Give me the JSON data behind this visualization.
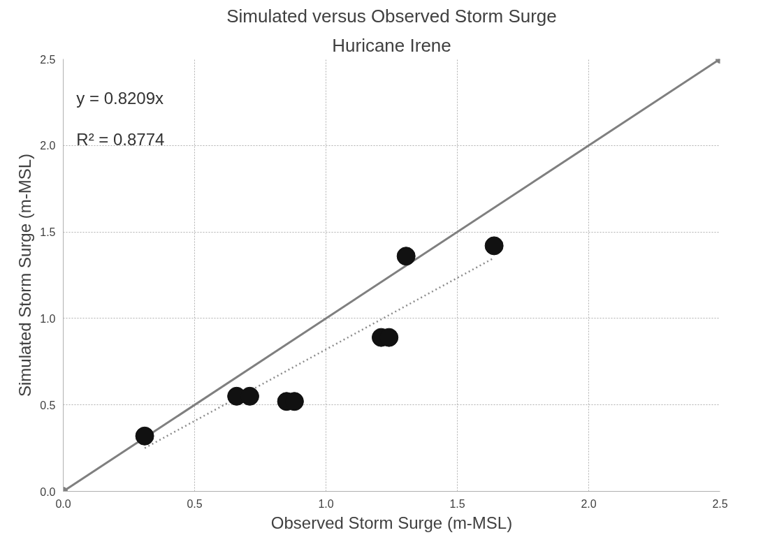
{
  "chart_data": {
    "type": "scatter",
    "title": "Simulated versus Observed Storm Surge",
    "subtitle": "Huricane Irene",
    "xlabel": "Observed Storm Surge (m-MSL)",
    "ylabel": "Simulated Storm Surge (m-MSL)",
    "xlim": [
      0,
      2.5
    ],
    "ylim": [
      0,
      2.5
    ],
    "xticks": [
      {
        "value": 0,
        "label": "0.0"
      },
      0.5,
      {
        "value": 1,
        "label": "1.0"
      },
      1.5,
      {
        "value": 2,
        "label": "2.0"
      },
      2.5
    ],
    "yticks": [
      {
        "value": 0,
        "label": "0.0"
      },
      0.5,
      {
        "value": 1,
        "label": "1.0"
      },
      1.5,
      {
        "value": 2,
        "label": "2.0"
      },
      2.5
    ],
    "grid": true,
    "annotations": [
      "y = 0.8209x",
      "R² = 0.8774"
    ],
    "series": [
      {
        "type": "line",
        "color": "#7f7f7f",
        "marker": "circle",
        "line_style": "solid",
        "x": [
          0,
          2.5
        ],
        "values": [
          0,
          2.5
        ]
      },
      {
        "type": "line",
        "color": "#8c8c8c",
        "marker": "none",
        "line_style": "dotted",
        "x": [
          0.31,
          1.64
        ],
        "values": [
          0.25,
          1.35
        ]
      },
      {
        "color": "#111111",
        "marker": "circle",
        "x": [
          0.31,
          0.66,
          0.71,
          0.85,
          0.88,
          1.21,
          1.24,
          1.305,
          1.64
        ],
        "values": [
          0.32,
          0.55,
          0.55,
          0.52,
          0.52,
          0.89,
          0.89,
          1.36,
          1.42
        ]
      }
    ]
  }
}
